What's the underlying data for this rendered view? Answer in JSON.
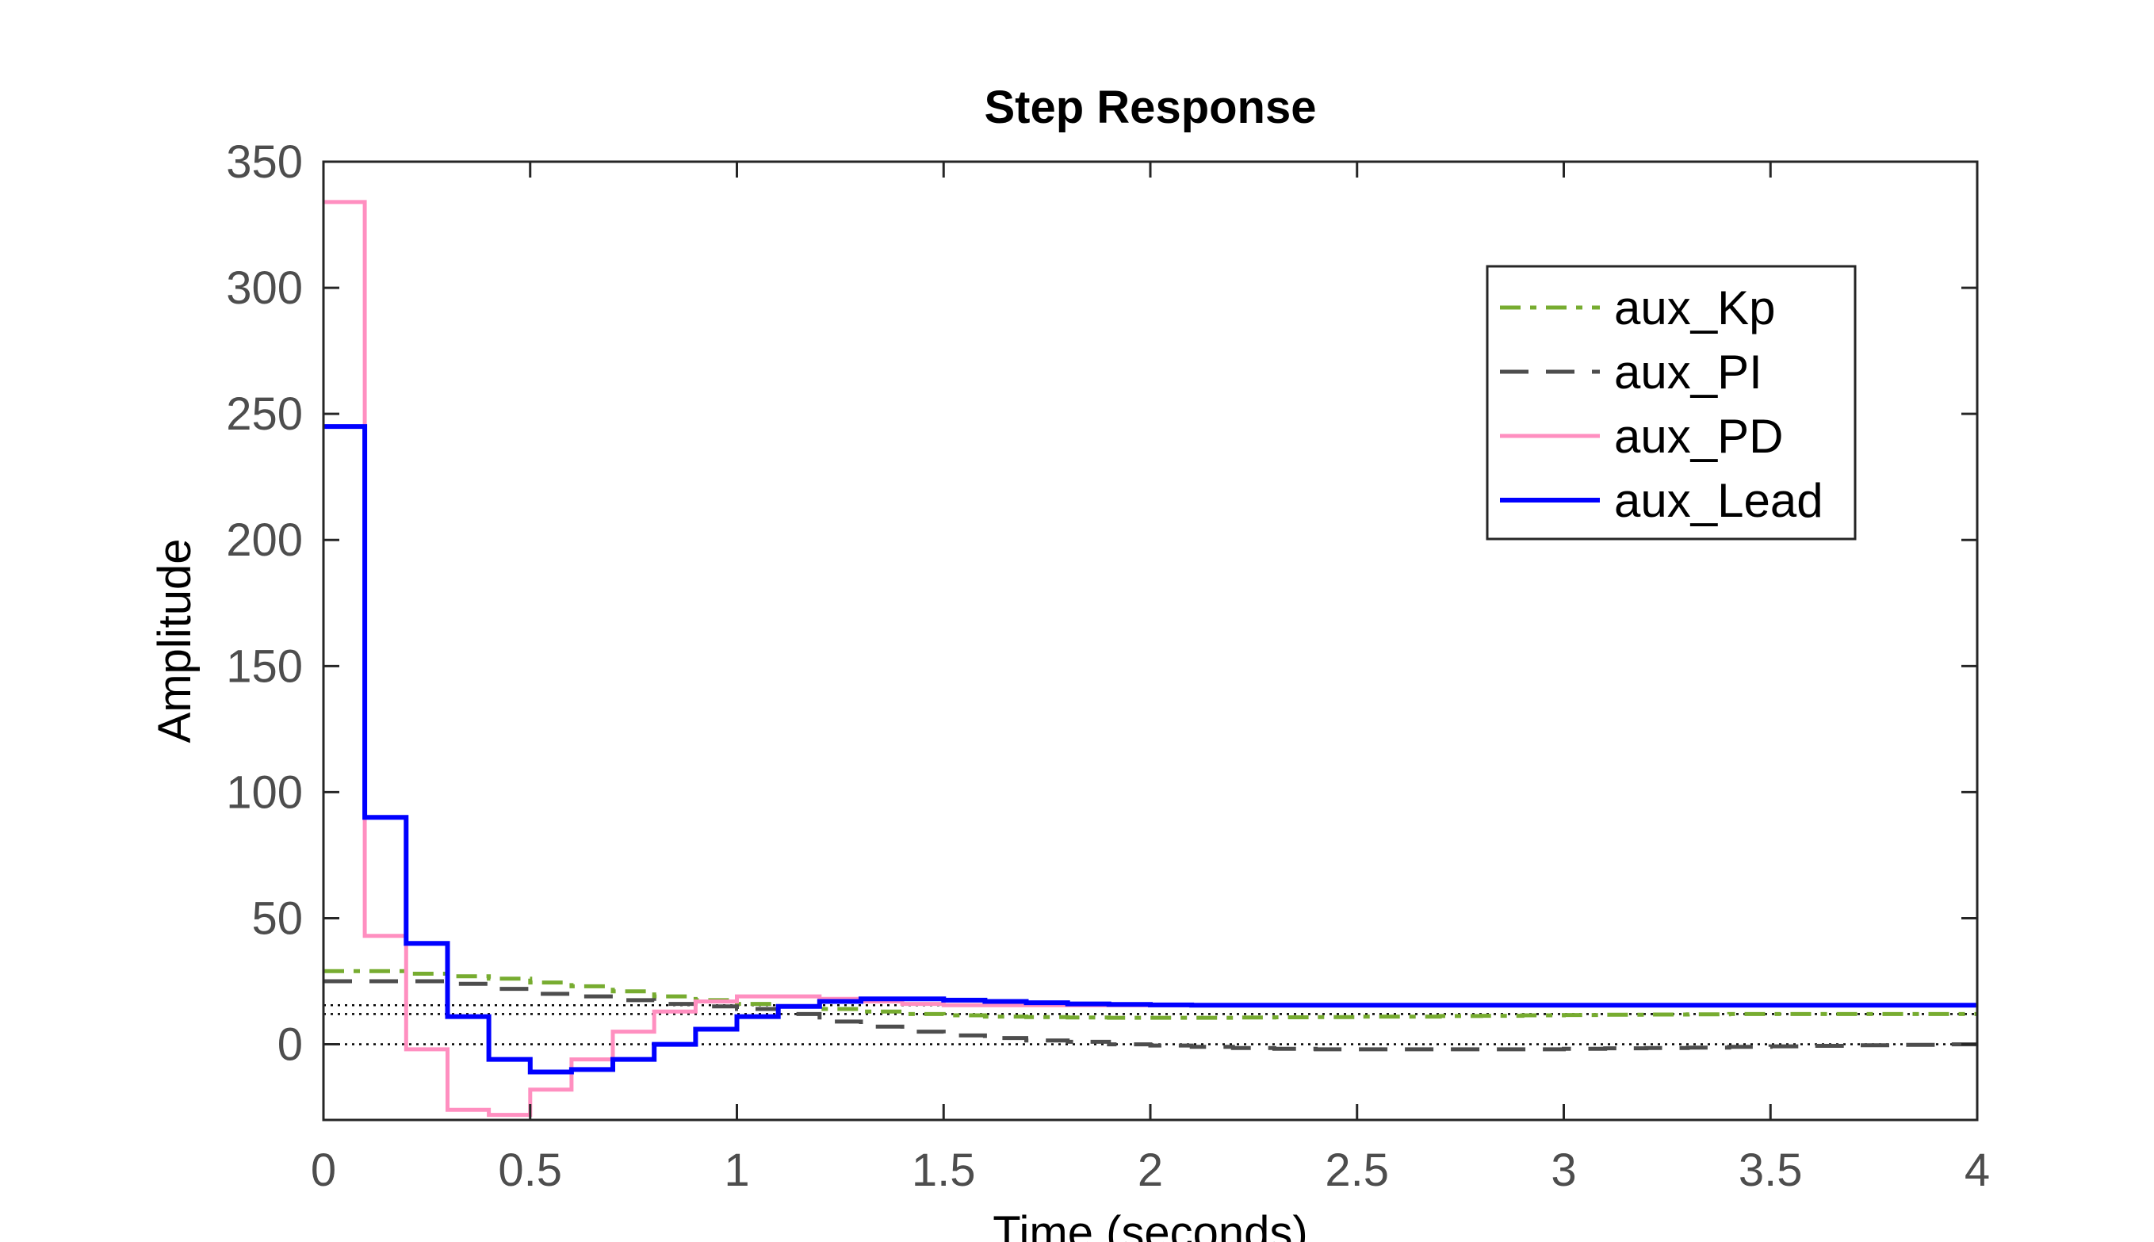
{
  "chart_data": {
    "type": "line",
    "title": "Step Response",
    "xlabel": "Time (seconds)",
    "ylabel": "Amplitude",
    "xlim": [
      0,
      4
    ],
    "ylim": [
      -30,
      350
    ],
    "xticks": [
      0,
      0.5,
      1,
      1.5,
      2,
      2.5,
      3,
      3.5,
      4
    ],
    "xtick_labels": [
      "0",
      "0.5",
      "1",
      "1.5",
      "2",
      "2.5",
      "3",
      "3.5",
      "4"
    ],
    "yticks": [
      0,
      50,
      100,
      150,
      200,
      250,
      300,
      350
    ],
    "ytick_labels": [
      "0",
      "50",
      "100",
      "150",
      "200",
      "250",
      "300",
      "350"
    ],
    "grid": false,
    "legend_position": "top-right",
    "reference_lines": [
      {
        "y": 0,
        "style": "dotted",
        "color": "#000000"
      },
      {
        "y": 12,
        "style": "dotted",
        "color": "#000000"
      },
      {
        "y": 15.5,
        "style": "dotted",
        "color": "#000000"
      }
    ],
    "series": [
      {
        "name": "aux_Kp",
        "color": "#77ac30",
        "style": "dashdot",
        "interp": "step",
        "x": [
          0,
          0.1,
          0.2,
          0.3,
          0.4,
          0.5,
          0.6,
          0.7,
          0.8,
          0.9,
          1.0,
          1.1,
          1.2,
          1.3,
          1.4,
          1.5,
          1.6,
          1.7,
          1.8,
          1.9,
          2.0,
          2.1,
          2.2,
          2.3,
          2.4,
          2.5,
          2.6,
          2.7,
          2.8,
          2.9,
          3.0,
          3.1,
          3.2,
          3.3,
          3.4,
          3.5,
          3.6,
          3.7,
          3.8,
          3.9,
          4.0
        ],
        "y": [
          29,
          29,
          28,
          27,
          26,
          24.5,
          23,
          21,
          19,
          17.5,
          16,
          15,
          14,
          13,
          12,
          11.5,
          11,
          10.8,
          10.6,
          10.5,
          10.5,
          10.5,
          10.6,
          10.7,
          10.8,
          11,
          11,
          11.2,
          11.3,
          11.5,
          11.6,
          11.7,
          11.8,
          11.9,
          12,
          12,
          12,
          12,
          12,
          12,
          12
        ]
      },
      {
        "name": "aux_PI",
        "color": "#4d4d4d",
        "style": "dashed",
        "interp": "step",
        "x": [
          0,
          0.1,
          0.2,
          0.3,
          0.4,
          0.5,
          0.6,
          0.7,
          0.8,
          0.9,
          1.0,
          1.1,
          1.2,
          1.3,
          1.4,
          1.5,
          1.6,
          1.7,
          1.8,
          1.9,
          2.0,
          2.1,
          2.2,
          2.3,
          2.4,
          2.5,
          2.6,
          2.7,
          2.8,
          2.9,
          3.0,
          3.1,
          3.2,
          3.3,
          3.4,
          3.5,
          3.6,
          3.7,
          3.8,
          3.9,
          4.0
        ],
        "y": [
          25,
          25,
          25,
          24,
          22,
          20,
          19,
          17.5,
          16,
          15,
          14,
          12,
          9,
          7,
          5,
          3.5,
          2.5,
          1.5,
          1,
          0,
          -0.5,
          -1,
          -1.5,
          -1.8,
          -2,
          -2,
          -2,
          -2,
          -2,
          -2,
          -1.8,
          -1.6,
          -1.5,
          -1.3,
          -1,
          -0.8,
          -0.6,
          -0.4,
          -0.2,
          0,
          0
        ]
      },
      {
        "name": "aux_PD",
        "color": "#ff8fc0",
        "style": "solid",
        "interp": "step",
        "x": [
          0,
          0.1,
          0.2,
          0.3,
          0.4,
          0.5,
          0.6,
          0.7,
          0.8,
          0.9,
          1.0,
          1.1,
          1.2,
          1.3,
          1.4,
          1.5,
          1.6,
          1.7,
          1.8,
          1.9,
          2.0,
          2.1,
          2.2,
          2.3,
          2.4,
          2.5,
          2.6,
          2.7,
          2.8,
          2.9,
          3.0,
          3.1,
          3.2,
          3.3,
          3.4,
          3.5,
          3.6,
          3.7,
          3.8,
          3.9,
          4.0
        ],
        "y": [
          334,
          43,
          -2,
          -26,
          -28,
          -18,
          -6,
          5,
          13,
          17,
          19,
          19,
          18,
          17,
          16,
          15.5,
          15.5,
          15.5,
          15.5,
          15.5,
          15.5,
          15.5,
          15.5,
          15.5,
          15.5,
          15.5,
          15.5,
          15.5,
          15.5,
          15.5,
          15.5,
          15.5,
          15.5,
          15.5,
          15.5,
          15.5,
          15.5,
          15.5,
          15.5,
          15.5,
          15.5
        ]
      },
      {
        "name": "aux_Lead",
        "color": "#0000ff",
        "style": "solid",
        "interp": "step",
        "x": [
          0,
          0.1,
          0.2,
          0.3,
          0.4,
          0.5,
          0.6,
          0.7,
          0.8,
          0.9,
          1.0,
          1.1,
          1.2,
          1.3,
          1.4,
          1.5,
          1.6,
          1.7,
          1.8,
          1.9,
          2.0,
          2.1,
          2.2,
          2.3,
          2.4,
          2.5,
          2.6,
          2.7,
          2.8,
          2.9,
          3.0,
          3.1,
          3.2,
          3.3,
          3.4,
          3.5,
          3.6,
          3.7,
          3.8,
          3.9,
          4.0
        ],
        "y": [
          245,
          90,
          40,
          11,
          -6,
          -11,
          -10,
          -6,
          0,
          6,
          11,
          15,
          17,
          18,
          18,
          17.5,
          17,
          16.5,
          16,
          15.8,
          15.6,
          15.5,
          15.5,
          15.5,
          15.5,
          15.5,
          15.5,
          15.5,
          15.5,
          15.5,
          15.5,
          15.5,
          15.5,
          15.5,
          15.5,
          15.5,
          15.5,
          15.5,
          15.5,
          15.5,
          15.5
        ]
      }
    ]
  }
}
